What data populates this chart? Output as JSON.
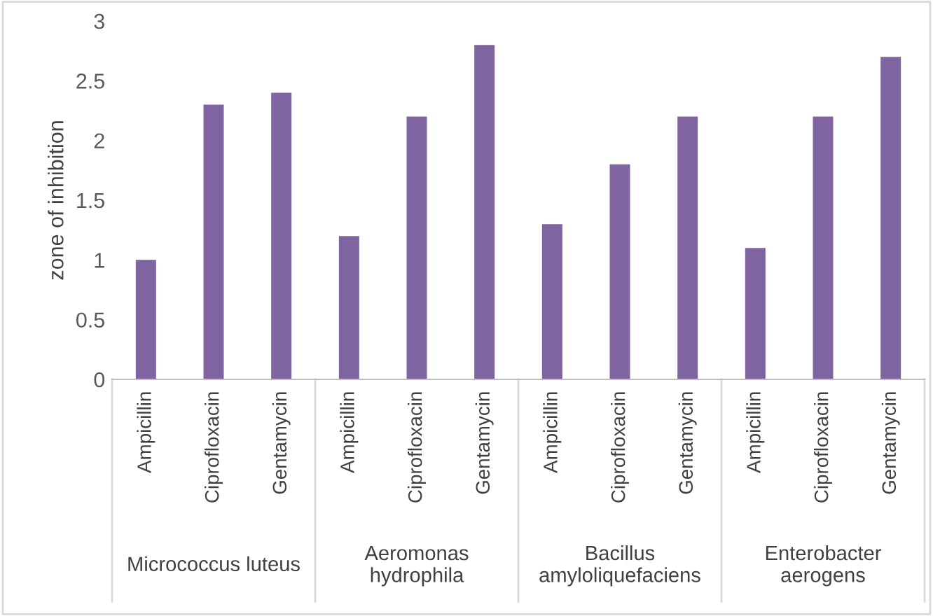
{
  "chart_data": {
    "type": "bar",
    "ylabel": "zone of inhibition",
    "categories": [
      "Ampicillin",
      "Ciprofloxacin",
      "Gentamycin",
      "Ampicillin",
      "Ciprofloxacin",
      "Gentamycin",
      "Ampicillin",
      "Ciprofloxacin",
      "Gentamycin",
      "Ampicillin",
      "Ciprofloxacin",
      "Gentamycin"
    ],
    "values": [
      1.0,
      2.3,
      2.4,
      1.2,
      2.2,
      2.8,
      1.3,
      1.8,
      2.2,
      1.1,
      2.2,
      2.7
    ],
    "color": "#8064a2",
    "ylim": [
      0,
      3
    ],
    "yticks": [
      0,
      0.5,
      1,
      1.5,
      2,
      2.5,
      3
    ],
    "annotations": [
      "Micrococcus luteus",
      "Aeromonas\nhydrophila",
      "Bacillus\namyloliquefaciens",
      "Enterobacter\naerogens"
    ]
  }
}
